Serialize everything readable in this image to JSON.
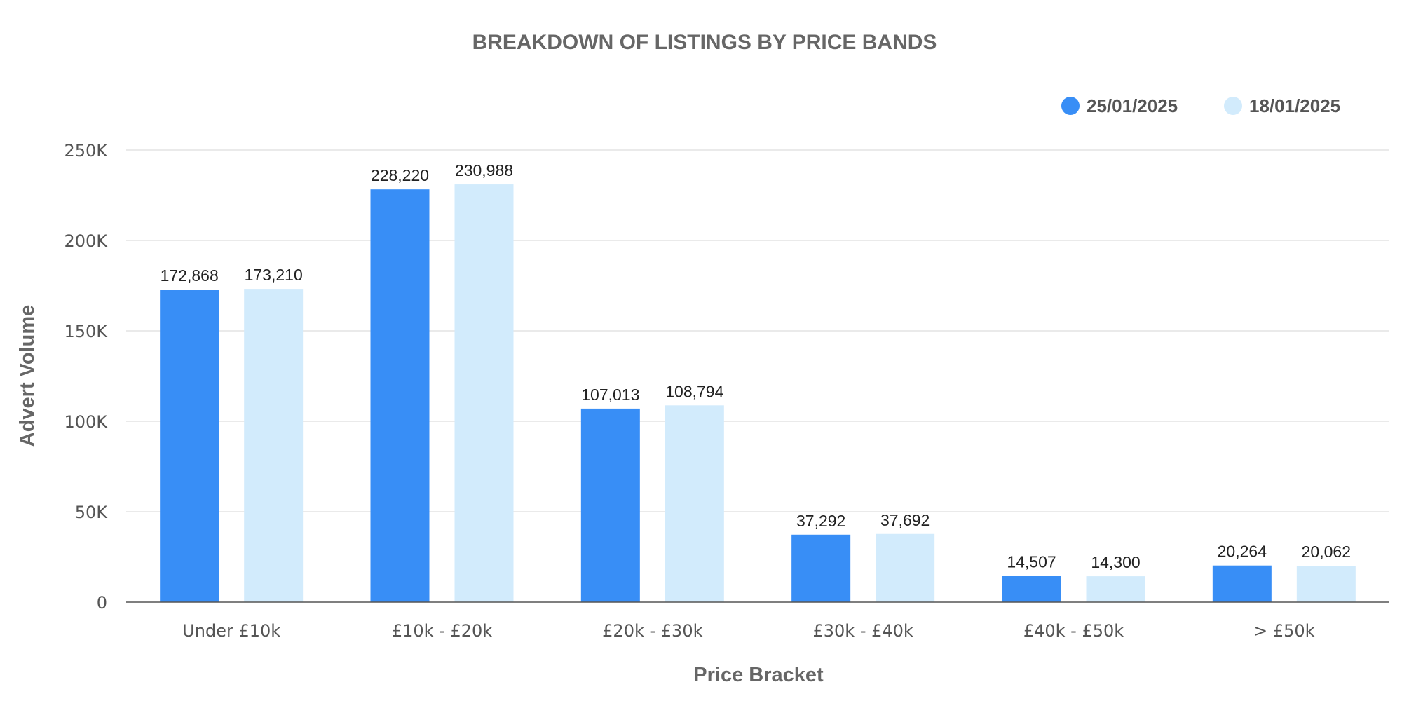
{
  "chart_data": {
    "type": "bar",
    "title": "BREAKDOWN OF LISTINGS BY PRICE BANDS",
    "xlabel": "Price Bracket",
    "ylabel": "Advert Volume",
    "categories": [
      "Under £10k",
      "£10k - £20k",
      "£20k - £30k",
      "£30k - £40k",
      "£40k - £50k",
      "> £50k"
    ],
    "series": [
      {
        "name": "25/01/2025",
        "color": "#388ef6",
        "values": [
          172868,
          228220,
          107013,
          37292,
          14507,
          20264
        ],
        "labels": [
          "172,868",
          "228,220",
          "107,013",
          "37,292",
          "14,507",
          "20,264"
        ]
      },
      {
        "name": "18/01/2025",
        "color": "#d2ebfc",
        "values": [
          173210,
          230988,
          108794,
          37692,
          14300,
          20062
        ],
        "labels": [
          "173,210",
          "230,988",
          "108,794",
          "37,692",
          "14,300",
          "20,062"
        ]
      }
    ],
    "ylim": [
      0,
      250000
    ],
    "yticks": [
      0,
      50000,
      100000,
      150000,
      200000,
      250000
    ],
    "ytick_labels": [
      "0",
      "50K",
      "100K",
      "150K",
      "200K",
      "250K"
    ],
    "grid": true,
    "legend_position": "top-right"
  }
}
